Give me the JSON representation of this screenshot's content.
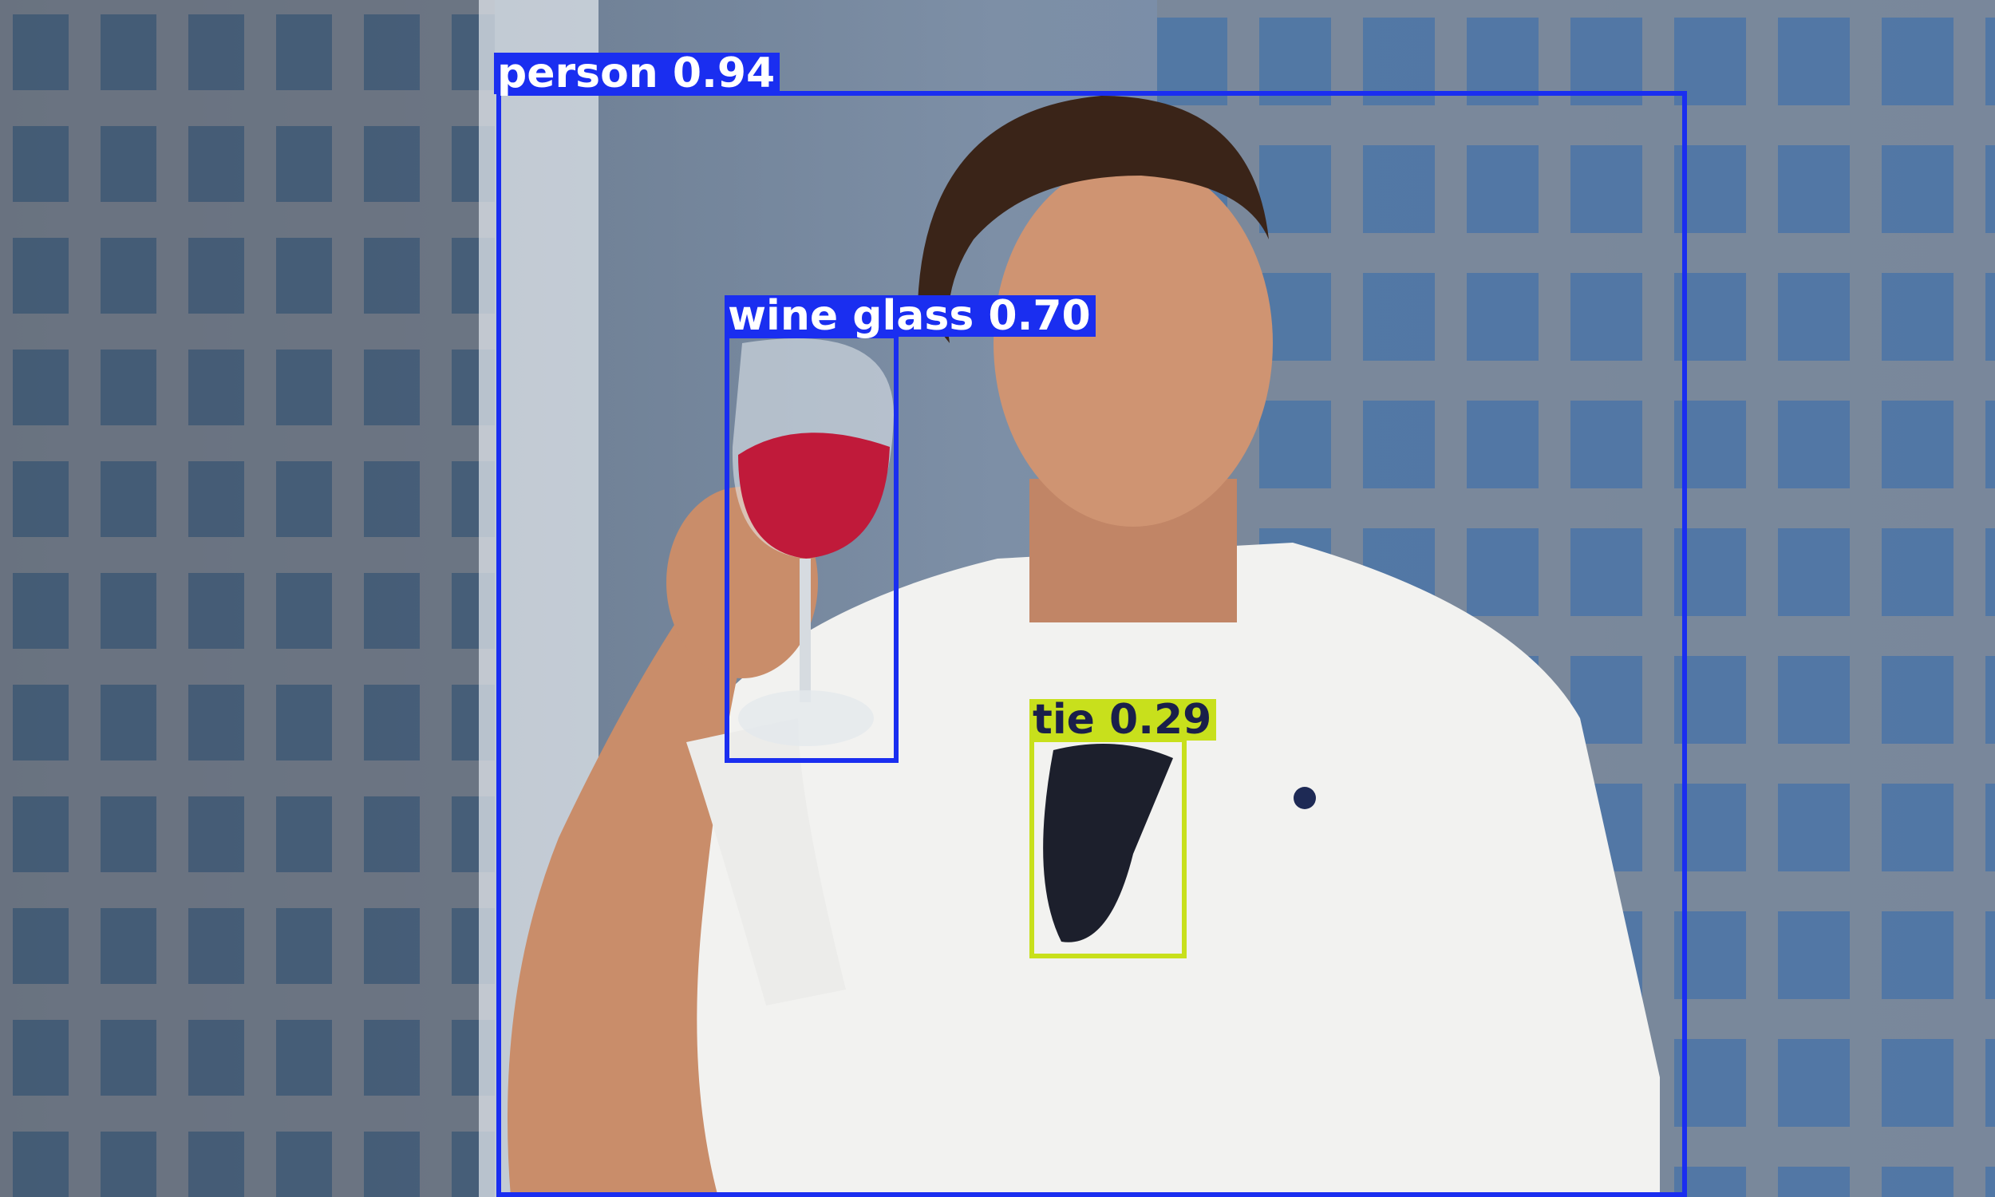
{
  "image": {
    "description_icon": "photo-man-with-wine-glass-icon",
    "colors": {
      "sky_building": "#6f86a3",
      "window_blue": "#3f6fa8",
      "shirt": "#f2f2f0",
      "skin": "#c98d6a",
      "hair": "#3a2418",
      "wine": "#c01a3a"
    }
  },
  "detections": [
    {
      "label": "person",
      "score": "0.94",
      "text": "person 0.94",
      "color": "#1a2ef0",
      "text_color": "#ffffff"
    },
    {
      "label": "wine glass",
      "score": "0.70",
      "text": "wine glass 0.70",
      "color": "#1a2ef0",
      "text_color": "#ffffff"
    },
    {
      "label": "tie",
      "score": "0.29",
      "text": "tie 0.29",
      "color": "#c8e01c",
      "text_color": "#1a1f4a"
    }
  ]
}
